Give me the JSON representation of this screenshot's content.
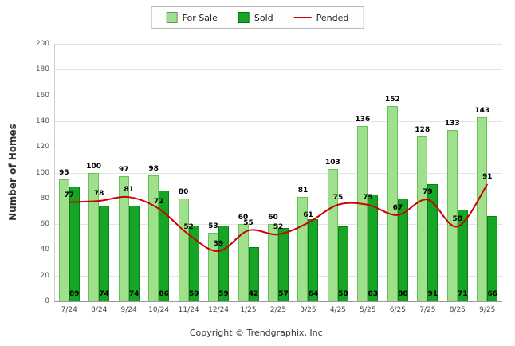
{
  "footer": "Copyright © Trendgraphix, Inc.",
  "colors": {
    "for_sale": "#9fe08c",
    "for_sale_border": "#68c157",
    "sold": "#16a524",
    "sold_border": "#0c7d1b",
    "pended": "#cc0000",
    "grid": "#e4e4e4",
    "axis": "#9a9a9a"
  },
  "chart_data": {
    "type": "bar",
    "title": "",
    "xlabel": "",
    "ylabel": "Number of Homes",
    "ylim": [
      0,
      200
    ],
    "ytick_step": 20,
    "grid": true,
    "legend_position": "top",
    "categories": [
      "7/24",
      "8/24",
      "9/24",
      "10/24",
      "11/24",
      "12/24",
      "1/25",
      "2/25",
      "3/25",
      "4/25",
      "5/25",
      "6/25",
      "7/25",
      "8/25",
      "9/25"
    ],
    "series": [
      {
        "name": "For Sale",
        "type": "bar",
        "values": [
          95,
          100,
          97,
          98,
          80,
          53,
          60,
          60,
          81,
          103,
          136,
          152,
          128,
          133,
          143
        ]
      },
      {
        "name": "Sold",
        "type": "bar",
        "values": [
          89,
          74,
          74,
          86,
          59,
          59,
          42,
          57,
          64,
          58,
          83,
          80,
          91,
          71,
          66
        ]
      },
      {
        "name": "Pended",
        "type": "line",
        "values": [
          77,
          78,
          81,
          72,
          52,
          39,
          55,
          52,
          61,
          75,
          75,
          67,
          79,
          58,
          91
        ]
      }
    ]
  }
}
